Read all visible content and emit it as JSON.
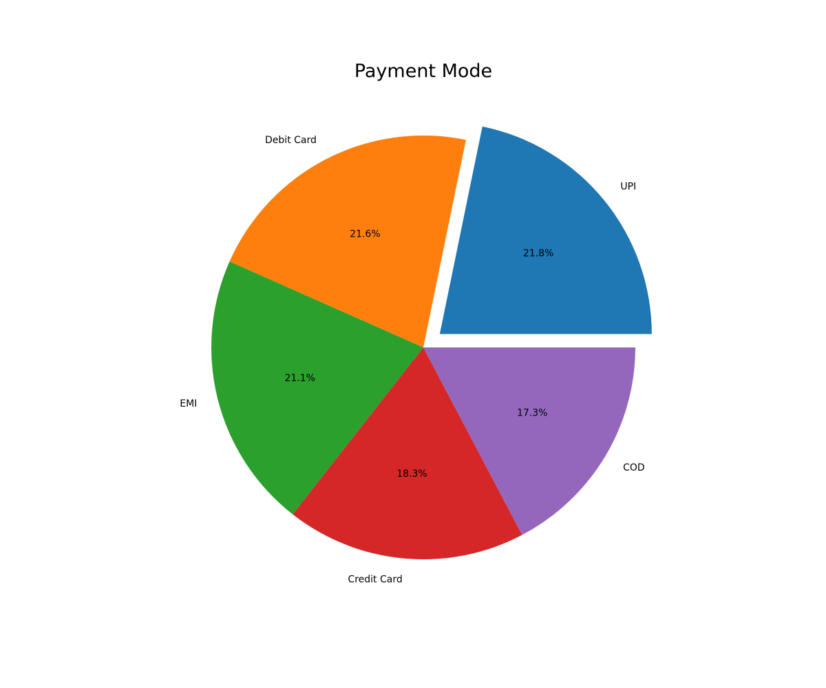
{
  "chart_data": {
    "type": "pie",
    "title": "Payment Mode",
    "start_angle_deg": 0,
    "direction": "counterclockwise",
    "explode": [
      0.1,
      0,
      0,
      0,
      0
    ],
    "slices": [
      {
        "label": "UPI",
        "value": 21.8,
        "pct_label": "21.8%",
        "color": "#1f77b4"
      },
      {
        "label": "Debit Card",
        "value": 21.6,
        "pct_label": "21.6%",
        "color": "#ff7f0e"
      },
      {
        "label": "EMI",
        "value": 21.1,
        "pct_label": "21.1%",
        "color": "#2ca02c"
      },
      {
        "label": "Credit Card",
        "value": 18.3,
        "pct_label": "18.3%",
        "color": "#d62728"
      },
      {
        "label": "COD",
        "value": 17.3,
        "pct_label": "17.3%",
        "color": "#9467bd"
      }
    ]
  }
}
